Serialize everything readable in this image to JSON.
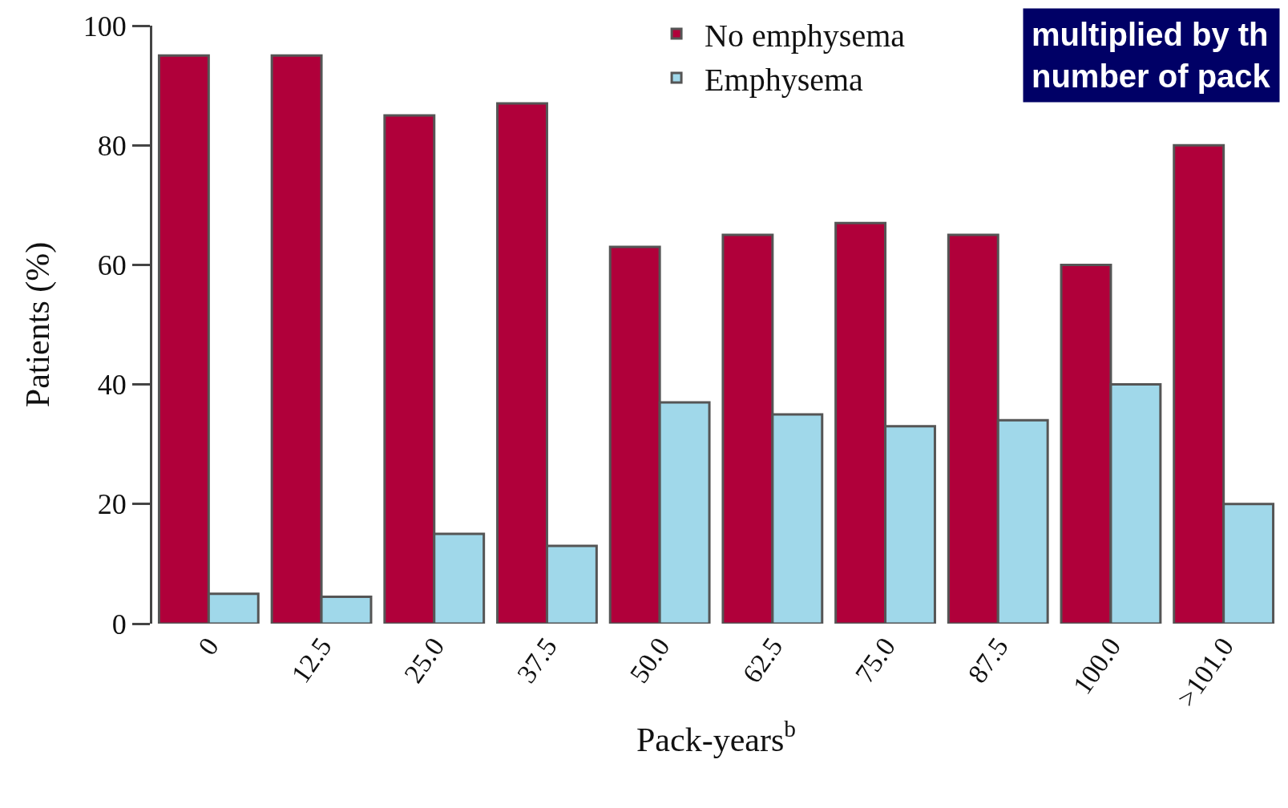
{
  "chart_data": {
    "type": "bar",
    "xlabel": "Pack-years$^{b}$",
    "ylabel": "Patients (%)",
    "categories": [
      "0",
      "12.5",
      "25.0",
      "37.5",
      "50.0",
      "62.5",
      "75.0",
      "87.5",
      "100.0",
      ">101.0"
    ],
    "series": [
      {
        "name": "No emphysema",
        "color": "#b0003a",
        "values": [
          95,
          95,
          85,
          87,
          63,
          65,
          67,
          65,
          60,
          80
        ]
      },
      {
        "name": "Emphysema",
        "color": "#a0d8ea",
        "values": [
          5,
          4.5,
          15,
          13,
          37,
          35,
          33,
          34,
          40,
          20
        ]
      }
    ],
    "ylim": [
      0,
      100
    ],
    "yticks": [
      0,
      20,
      40,
      60,
      80,
      100
    ],
    "grid": false,
    "legend": "top",
    "annotations": [
      "multiplied by th\nnumber of pack"
    ]
  }
}
